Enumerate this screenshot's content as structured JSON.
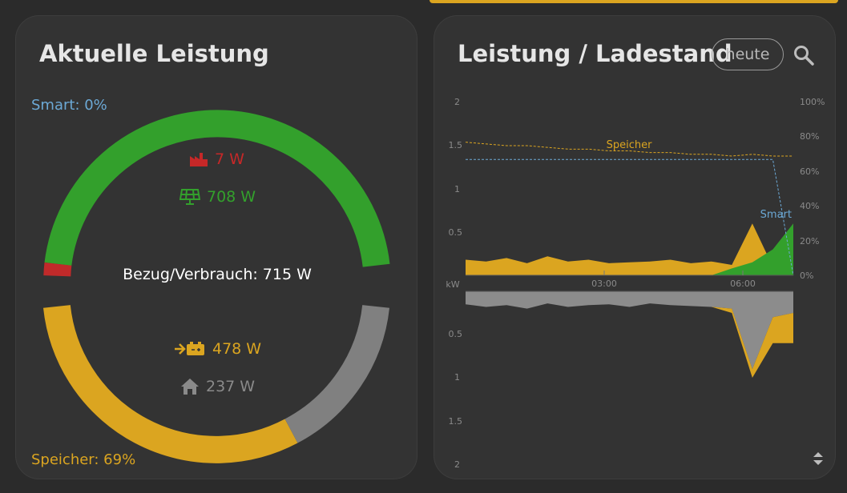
{
  "left_card": {
    "title": "Aktuelle Leistung",
    "smart_label": "Smart: 0%",
    "speicher_label": "Speicher: 69%",
    "center_label": "Bezug/Verbrauch: 715 W",
    "grid_value": "7 W",
    "solar_value": "708 W",
    "battery_value": "478 W",
    "house_value": "237 W",
    "icons": [
      "factory-icon",
      "solar-panel-icon",
      "battery-charge-icon",
      "house-icon"
    ],
    "colors": {
      "grid": "#c02a2a",
      "solar": "#33a02c",
      "battery": "#dba520",
      "house": "#8a8a8a",
      "smart": "#6ca9d6"
    }
  },
  "right_card": {
    "title": "Leistung / Ladestand",
    "range_button": "heute",
    "search_icon": "search-icon",
    "sort_icon": "sort-icon",
    "upper_chart": {
      "y_ticks_left": [
        "2",
        "1.5",
        "1",
        "0.5"
      ],
      "y_ticks_right": [
        "100%",
        "80%",
        "60%",
        "40%",
        "20%",
        "0%"
      ],
      "unit_label": "kW",
      "x_ticks": [
        "03:00",
        "06:00"
      ],
      "series_labels": [
        "Speicher",
        "Smart"
      ]
    },
    "lower_chart": {
      "y_ticks": [
        "0.5",
        "1",
        "1.5",
        "2"
      ]
    }
  },
  "chart_data": {
    "type": "area",
    "x_unit": "time of day",
    "ylabel": "kW",
    "ylim_upper": [
      0,
      2
    ],
    "ylim_upper_right": [
      0,
      100
    ],
    "ylim_lower": [
      0,
      2
    ],
    "x": [
      "00:00",
      "00:30",
      "01:00",
      "01:30",
      "02:00",
      "02:30",
      "03:00",
      "03:30",
      "04:00",
      "04:30",
      "05:00",
      "05:30",
      "06:00",
      "06:15",
      "06:30",
      "06:45",
      "07:00"
    ],
    "series": [
      {
        "name": "Speicher",
        "axis": "right",
        "unit": "%",
        "values": [
          77,
          76,
          75,
          75,
          74,
          73,
          73,
          72,
          72,
          71,
          71,
          70,
          70,
          69,
          70,
          69,
          69
        ]
      },
      {
        "name": "Smart",
        "axis": "right",
        "unit": "%",
        "values": [
          67,
          67,
          67,
          67,
          67,
          67,
          67,
          67,
          67,
          67,
          67,
          67,
          67,
          67,
          67,
          67,
          0
        ]
      },
      {
        "values": [
          0.18,
          0.16,
          0.2,
          0.14,
          0.22,
          0.16,
          0.18,
          0.14,
          0.15,
          0.16,
          0.18,
          0.14,
          0.16,
          0.12,
          0.6,
          0.1,
          0.08
        ]
      },
      {
        "values": [
          0,
          0,
          0,
          0,
          0,
          0,
          0,
          0,
          0,
          0,
          0,
          0,
          0,
          0.08,
          0.15,
          0.3,
          0.6
        ]
      },
      {
        "values": [
          0.15,
          0.18,
          0.16,
          0.2,
          0.14,
          0.18,
          0.16,
          0.15,
          0.18,
          0.14,
          0.16,
          0.17,
          0.18,
          0.2,
          0.9,
          0.3,
          0.25
        ]
      },
      {
        "values": [
          0,
          0,
          0,
          0,
          0,
          0,
          0,
          0,
          0,
          0,
          0,
          0,
          0,
          0.05,
          0.1,
          0.3,
          0.35
        ]
      }
    ]
  }
}
